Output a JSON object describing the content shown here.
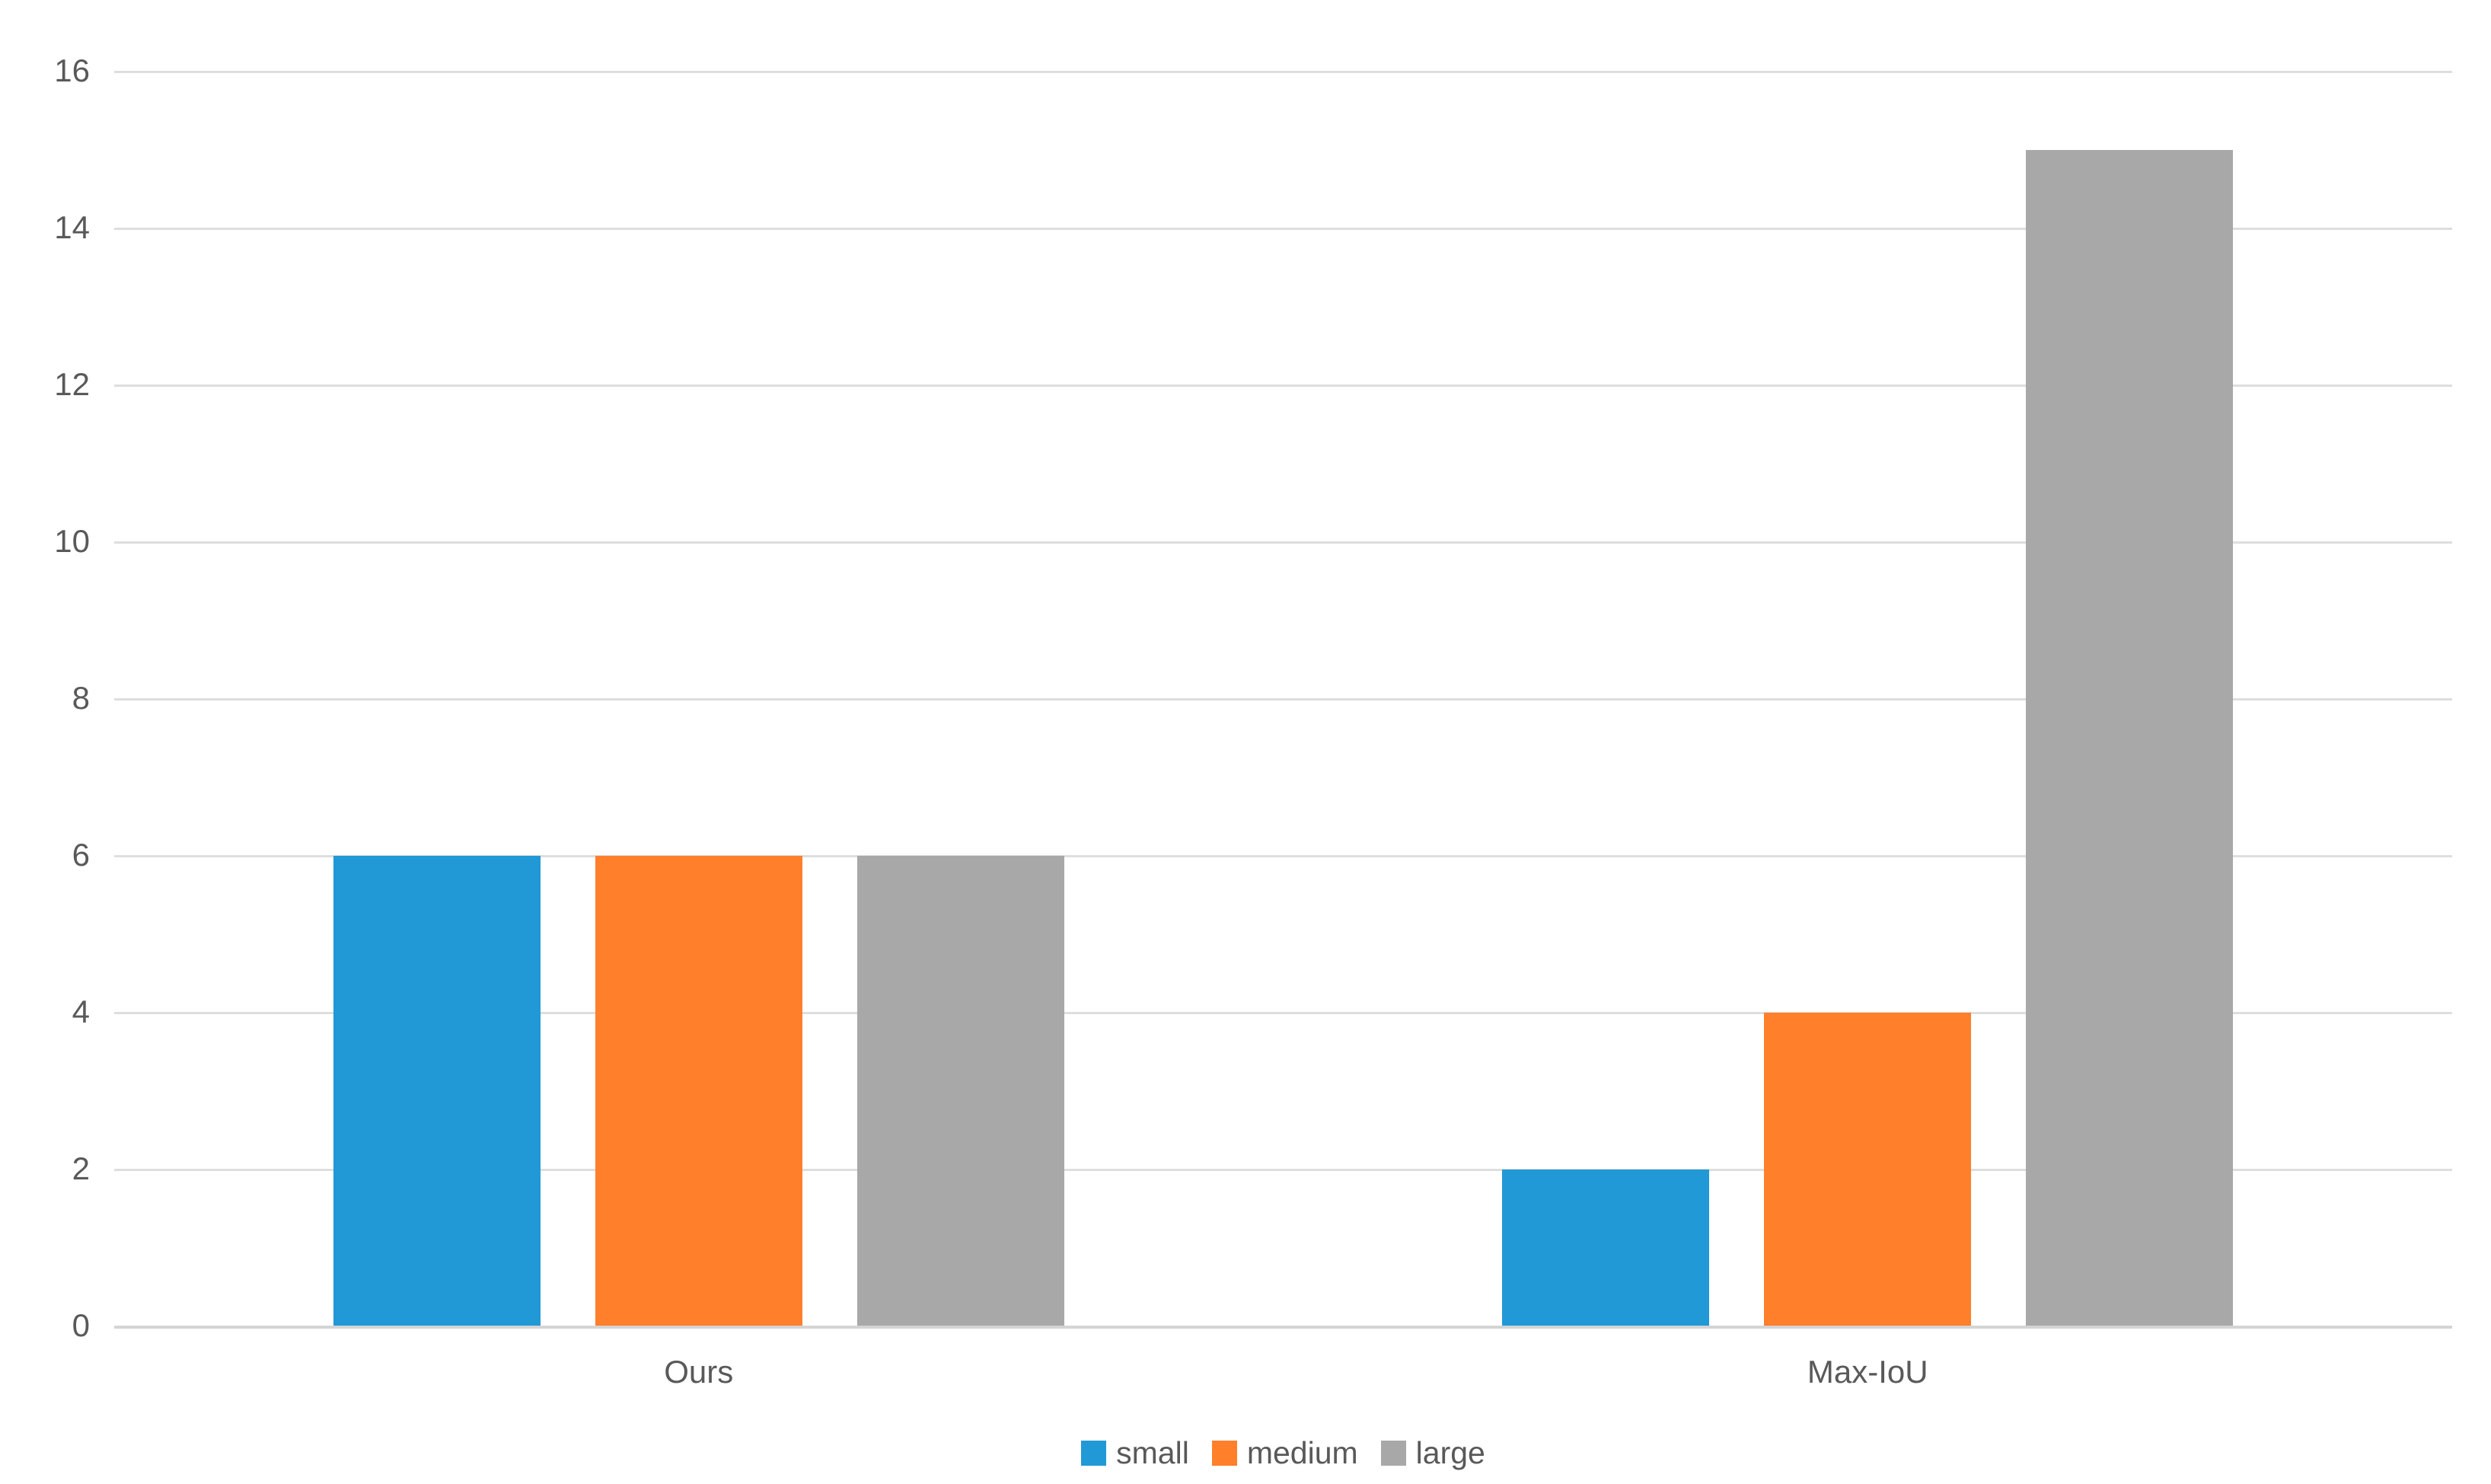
{
  "chart_data": {
    "type": "bar",
    "title": "",
    "xlabel": "",
    "ylabel": "",
    "categories": [
      "Ours",
      "Max-IoU"
    ],
    "series": [
      {
        "name": "small",
        "color": "#2199D6",
        "values": [
          6,
          2
        ]
      },
      {
        "name": "medium",
        "color": "#FF7F2B",
        "values": [
          6,
          4
        ]
      },
      {
        "name": "large",
        "color": "#A8A8A8",
        "values": [
          6,
          15
        ]
      }
    ],
    "ylim": [
      0,
      16
    ],
    "yticks": [
      0,
      2,
      4,
      6,
      8,
      10,
      12,
      14,
      16
    ],
    "grid": true,
    "legend_position": "bottom",
    "legend_labels": [
      "small",
      "medium",
      "large"
    ]
  },
  "colors": {
    "background": "#FFFFFF",
    "gridline": "#DEDEDE",
    "axis_line": "#D4D4D4",
    "text": "#595959",
    "series_small": "#2199D6",
    "series_medium": "#FF7F2B",
    "series_large": "#A8A8A8"
  }
}
